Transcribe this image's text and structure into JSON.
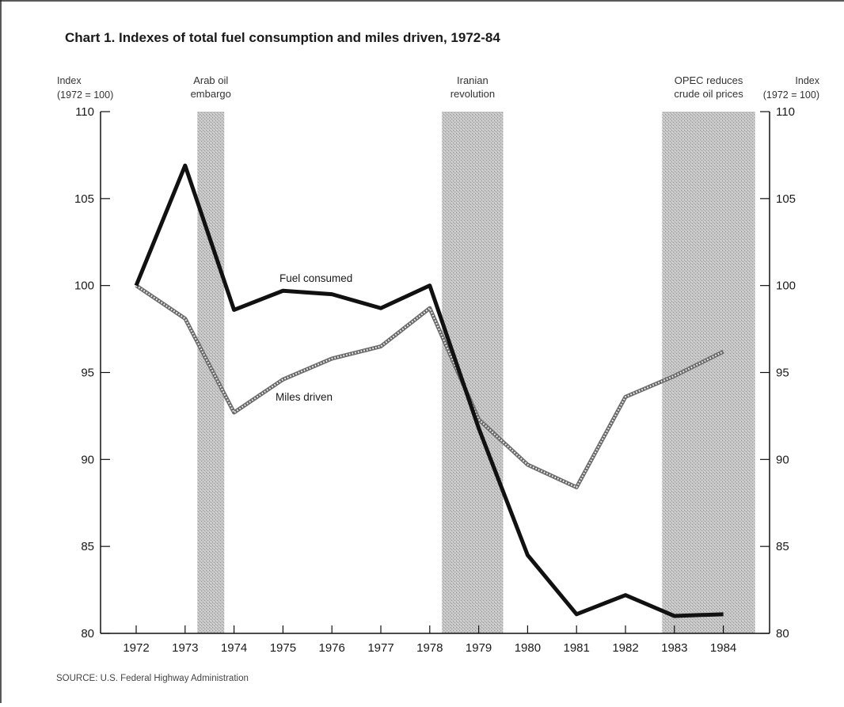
{
  "chart_data": {
    "type": "line",
    "title": "Chart 1. Indexes of total fuel consumption and miles driven, 1972-84",
    "left_axis_label": [
      "Index",
      "(1972 = 100)"
    ],
    "right_axis_label": [
      "Index",
      "(1972 = 100)"
    ],
    "x": [
      "1972",
      "1973",
      "1974",
      "1975",
      "1976",
      "1977",
      "1978",
      "1979",
      "1980",
      "1981",
      "1982",
      "1983",
      "1984"
    ],
    "ylim": [
      80,
      110
    ],
    "yticks": [
      "80",
      "85",
      "90",
      "95",
      "100",
      "105",
      "110"
    ],
    "series": [
      {
        "name": "Fuel consumed",
        "style": "solid",
        "color": "#111111",
        "values": [
          100,
          106.9,
          98.6,
          99.7,
          99.5,
          98.7,
          100,
          91.8,
          84.5,
          81.1,
          82.2,
          81.0,
          81.1
        ]
      },
      {
        "name": "Miles driven",
        "style": "hatched",
        "color": "#555555",
        "values": [
          100,
          98.1,
          92.7,
          94.6,
          95.8,
          96.5,
          98.7,
          92.3,
          89.7,
          88.4,
          93.6,
          94.8,
          96.2
        ]
      }
    ],
    "shaded_periods": [
      {
        "label": [
          "Arab oil",
          "embargo"
        ],
        "from": 1973.25,
        "to": 1973.8
      },
      {
        "label": [
          "Iranian",
          "revolution"
        ],
        "from": 1978.25,
        "to": 1979.5
      },
      {
        "label": [
          "OPEC reduces",
          "crude oil prices"
        ],
        "from": 1982.75,
        "to": 1984.65
      }
    ],
    "grid": false,
    "legend": "inline labels",
    "source": "SOURCE: U.S. Federal Highway Administration"
  }
}
